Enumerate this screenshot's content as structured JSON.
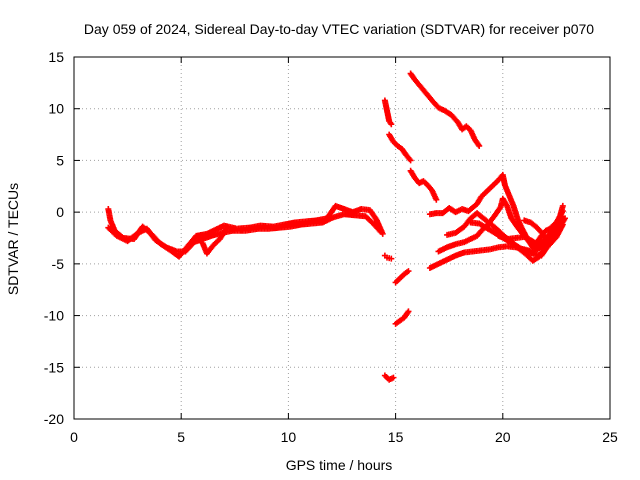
{
  "chart_data": {
    "type": "scatter",
    "title": "Day 059 of 2024, Sidereal Day-to-day VTEC variation (SDTVAR) for receiver p070",
    "xlabel": "GPS time / hours",
    "ylabel": "SDTVAR / TECUs",
    "xlim": [
      0,
      25
    ],
    "ylim": [
      -20,
      15
    ],
    "xticks": [
      0,
      5,
      10,
      15,
      20,
      25
    ],
    "yticks": [
      -20,
      -15,
      -10,
      -5,
      0,
      5,
      10,
      15
    ],
    "grid": true,
    "marker": "+",
    "color": "#ff0000",
    "series": [
      {
        "points": [
          [
            1.6,
            0.3
          ],
          [
            1.7,
            -0.8
          ],
          [
            1.9,
            -1.8
          ],
          [
            2.3,
            -2.5
          ],
          [
            2.8,
            -2.6
          ],
          [
            3.2,
            -1.4
          ],
          [
            3.6,
            -2.1
          ],
          [
            4.0,
            -3.0
          ],
          [
            4.5,
            -3.7
          ],
          [
            4.9,
            -4.3
          ],
          [
            5.3,
            -3.3
          ],
          [
            5.7,
            -2.3
          ],
          [
            6.2,
            -2.1
          ],
          [
            6.6,
            -1.7
          ],
          [
            7.0,
            -1.3
          ],
          [
            7.6,
            -1.6
          ],
          [
            8.2,
            -1.5
          ],
          [
            8.7,
            -1.3
          ],
          [
            9.3,
            -1.4
          ],
          [
            9.8,
            -1.2
          ],
          [
            10.3,
            -1.0
          ],
          [
            10.8,
            -0.9
          ],
          [
            11.3,
            -0.8
          ],
          [
            11.8,
            -0.6
          ],
          [
            12.2,
            0.6
          ],
          [
            12.6,
            0.3
          ],
          [
            13.0,
            0.0
          ],
          [
            13.4,
            0.3
          ],
          [
            13.8,
            0.2
          ],
          [
            14.1,
            -0.7
          ],
          [
            14.4,
            -2.1
          ]
        ]
      },
      {
        "points": [
          [
            1.6,
            -1.5
          ],
          [
            2.0,
            -2.3
          ],
          [
            2.5,
            -2.8
          ],
          [
            3.0,
            -2.0
          ],
          [
            3.4,
            -1.6
          ],
          [
            3.8,
            -2.7
          ],
          [
            4.3,
            -3.4
          ],
          [
            4.8,
            -3.8
          ],
          [
            5.2,
            -3.8
          ],
          [
            5.6,
            -2.9
          ],
          [
            6.0,
            -2.6
          ],
          [
            6.4,
            -2.3
          ],
          [
            6.9,
            -2.0
          ],
          [
            7.4,
            -1.8
          ],
          [
            8.0,
            -1.8
          ],
          [
            8.6,
            -1.6
          ],
          [
            9.1,
            -1.6
          ],
          [
            9.6,
            -1.5
          ],
          [
            10.1,
            -1.4
          ],
          [
            10.6,
            -1.2
          ],
          [
            11.1,
            -1.1
          ],
          [
            11.6,
            -1.0
          ],
          [
            12.1,
            -0.5
          ],
          [
            12.6,
            -0.2
          ],
          [
            13.1,
            -0.3
          ],
          [
            13.6,
            -0.4
          ],
          [
            14.0,
            -1.2
          ],
          [
            14.3,
            -1.9
          ]
        ]
      },
      {
        "points": [
          [
            6.0,
            -3.0
          ],
          [
            6.2,
            -4.0
          ],
          [
            6.5,
            -3.2
          ],
          [
            6.8,
            -2.6
          ],
          [
            7.1,
            -1.6
          ]
        ]
      },
      {
        "points": [
          [
            14.5,
            -4.2
          ],
          [
            14.6,
            -4.4
          ],
          [
            14.8,
            -4.5
          ]
        ]
      },
      {
        "points": [
          [
            14.5,
            -15.8
          ],
          [
            14.7,
            -16.2
          ],
          [
            14.9,
            -16.0
          ]
        ]
      },
      {
        "points": [
          [
            14.5,
            10.8
          ],
          [
            14.6,
            9.8
          ],
          [
            14.7,
            8.8
          ],
          [
            14.8,
            8.5
          ]
        ]
      },
      {
        "points": [
          [
            14.7,
            7.5
          ],
          [
            14.9,
            6.8
          ],
          [
            15.1,
            6.4
          ],
          [
            15.3,
            6.1
          ],
          [
            15.5,
            5.5
          ],
          [
            15.7,
            5.0
          ]
        ]
      },
      {
        "points": [
          [
            15.0,
            -6.8
          ],
          [
            15.2,
            -6.4
          ],
          [
            15.4,
            -6.0
          ],
          [
            15.6,
            -5.7
          ]
        ]
      },
      {
        "points": [
          [
            15.0,
            -10.8
          ],
          [
            15.2,
            -10.5
          ],
          [
            15.4,
            -10.2
          ],
          [
            15.6,
            -9.6
          ]
        ]
      },
      {
        "points": [
          [
            15.7,
            13.4
          ],
          [
            15.9,
            12.8
          ],
          [
            16.1,
            12.3
          ],
          [
            16.3,
            11.8
          ],
          [
            16.5,
            11.3
          ],
          [
            16.7,
            10.8
          ],
          [
            17.0,
            10.1
          ],
          [
            17.3,
            9.8
          ],
          [
            17.6,
            9.4
          ],
          [
            17.9,
            8.7
          ],
          [
            18.1,
            8.0
          ],
          [
            18.3,
            8.3
          ],
          [
            18.5,
            7.9
          ],
          [
            18.7,
            7.0
          ],
          [
            18.9,
            6.4
          ]
        ]
      },
      {
        "points": [
          [
            15.7,
            4.0
          ],
          [
            15.9,
            3.3
          ],
          [
            16.1,
            2.8
          ],
          [
            16.3,
            3.0
          ],
          [
            16.5,
            2.6
          ],
          [
            16.7,
            2.1
          ],
          [
            16.9,
            1.2
          ]
        ]
      },
      {
        "points": [
          [
            16.6,
            -0.2
          ],
          [
            16.9,
            -0.1
          ],
          [
            17.2,
            -0.1
          ],
          [
            17.5,
            0.4
          ],
          [
            17.8,
            0.0
          ],
          [
            18.1,
            0.3
          ],
          [
            18.4,
            0.1
          ],
          [
            18.8,
            0.8
          ],
          [
            19.0,
            1.5
          ],
          [
            19.2,
            1.9
          ],
          [
            19.4,
            2.3
          ],
          [
            19.6,
            2.7
          ],
          [
            19.8,
            3.1
          ],
          [
            20.0,
            3.6
          ],
          [
            20.1,
            2.6
          ],
          [
            20.3,
            1.6
          ],
          [
            20.5,
            0.6
          ],
          [
            20.7,
            -0.7
          ],
          [
            20.9,
            -1.6
          ],
          [
            21.2,
            -2.8
          ],
          [
            21.4,
            -3.4
          ],
          [
            21.6,
            -2.9
          ],
          [
            21.8,
            -2.3
          ],
          [
            22.0,
            -1.8
          ],
          [
            22.2,
            -1.6
          ],
          [
            22.5,
            -1.0
          ],
          [
            22.8,
            0.1
          ]
        ]
      },
      {
        "points": [
          [
            17.0,
            -3.8
          ],
          [
            17.4,
            -3.4
          ],
          [
            17.8,
            -3.1
          ],
          [
            18.2,
            -2.9
          ],
          [
            18.5,
            -2.6
          ],
          [
            18.8,
            -2.3
          ],
          [
            19.0,
            -1.8
          ],
          [
            19.3,
            -1.2
          ],
          [
            19.6,
            -0.4
          ],
          [
            19.9,
            0.5
          ],
          [
            20.0,
            1.3
          ],
          [
            20.2,
            0.6
          ],
          [
            20.4,
            -0.6
          ],
          [
            20.7,
            -1.5
          ],
          [
            21.0,
            -2.3
          ],
          [
            21.3,
            -3.0
          ],
          [
            21.6,
            -3.3
          ],
          [
            21.9,
            -2.8
          ],
          [
            22.2,
            -2.1
          ],
          [
            22.5,
            -1.3
          ],
          [
            22.8,
            -0.4
          ]
        ]
      },
      {
        "points": [
          [
            16.6,
            -5.4
          ],
          [
            17.0,
            -5.0
          ],
          [
            17.4,
            -4.6
          ],
          [
            17.8,
            -4.2
          ],
          [
            18.2,
            -3.9
          ],
          [
            18.6,
            -3.8
          ],
          [
            19.0,
            -3.7
          ],
          [
            19.4,
            -3.6
          ],
          [
            19.8,
            -3.4
          ],
          [
            20.2,
            -3.3
          ],
          [
            20.6,
            -3.4
          ],
          [
            21.0,
            -3.6
          ],
          [
            21.4,
            -3.8
          ],
          [
            21.7,
            -3.5
          ],
          [
            22.0,
            -2.8
          ]
        ]
      },
      {
        "points": [
          [
            17.4,
            -2.2
          ],
          [
            17.8,
            -2.0
          ],
          [
            18.2,
            -1.4
          ],
          [
            18.5,
            -0.6
          ],
          [
            18.8,
            -0.1
          ],
          [
            19.1,
            -0.6
          ],
          [
            19.4,
            -1.1
          ],
          [
            19.7,
            -1.6
          ],
          [
            20.0,
            -2.2
          ],
          [
            20.3,
            -2.7
          ],
          [
            20.6,
            -3.2
          ],
          [
            20.9,
            -3.6
          ],
          [
            21.2,
            -3.8
          ],
          [
            21.5,
            -4.1
          ],
          [
            21.8,
            -4.2
          ],
          [
            22.0,
            -3.6
          ],
          [
            22.3,
            -2.6
          ],
          [
            22.6,
            -1.6
          ],
          [
            22.9,
            -0.6
          ]
        ]
      },
      {
        "points": [
          [
            18.5,
            -1.0
          ],
          [
            18.9,
            -1.1
          ],
          [
            19.3,
            -1.6
          ],
          [
            19.7,
            -2.1
          ],
          [
            20.1,
            -2.6
          ],
          [
            20.5,
            -3.1
          ],
          [
            20.8,
            -3.6
          ],
          [
            21.1,
            -4.1
          ],
          [
            21.4,
            -4.7
          ],
          [
            21.7,
            -4.3
          ],
          [
            22.0,
            -3.3
          ],
          [
            22.3,
            -2.2
          ],
          [
            22.6,
            -0.9
          ],
          [
            22.8,
            0.6
          ]
        ]
      },
      {
        "points": [
          [
            19.8,
            -2.3
          ],
          [
            20.2,
            -2.6
          ],
          [
            20.6,
            -2.5
          ],
          [
            21.0,
            -2.4
          ],
          [
            21.3,
            -2.7
          ],
          [
            21.6,
            -3.1
          ],
          [
            21.9,
            -3.5
          ],
          [
            22.2,
            -3.1
          ]
        ]
      },
      {
        "points": [
          [
            21.0,
            -0.8
          ],
          [
            21.3,
            -1.0
          ],
          [
            21.6,
            -1.5
          ],
          [
            21.9,
            -2.2
          ],
          [
            22.2,
            -3.1
          ],
          [
            22.5,
            -2.4
          ],
          [
            22.8,
            -1.2
          ]
        ]
      }
    ]
  }
}
